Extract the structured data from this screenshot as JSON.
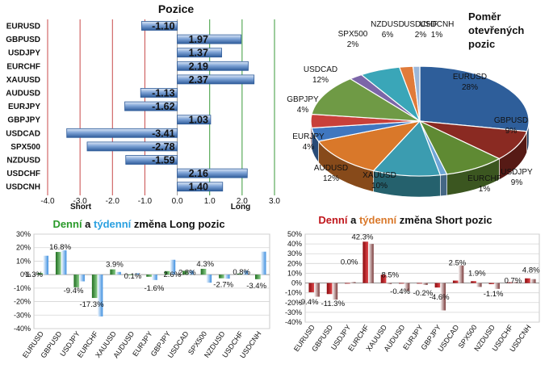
{
  "positions": {
    "title": "Pozice",
    "short_label": "Short",
    "long_label": "Long",
    "xticks": [
      "-4.0",
      "-3.0",
      "-2.0",
      "-1.0",
      "0.0",
      "1.0",
      "2.0",
      "3.0"
    ]
  },
  "pie_title": [
    "Poměr",
    "otevřených",
    "pozic"
  ],
  "long_chart": {
    "title_parts": [
      "Denní",
      " a ",
      "týdenní",
      " změna Long pozic"
    ],
    "yticks": [
      "30%",
      "20%",
      "10%",
      "0%",
      "-10%",
      "-20%",
      "-30%",
      "-40%"
    ]
  },
  "short_chart": {
    "title_parts": [
      "Denní",
      " a ",
      "týdenní",
      " změna Short pozic"
    ],
    "yticks": [
      "50%",
      "40%",
      "30%",
      "20%",
      "10%",
      "0%",
      "-10%",
      "-20%",
      "-30%",
      "-40%"
    ]
  },
  "colors": {
    "long_daily": "#3a9a3a",
    "long_weekly": "#3d8fe0",
    "short_daily": "#c0161c",
    "short_weekly": "#9c5a5a",
    "bar_blue": "#4f7fc0"
  },
  "chart_data": [
    {
      "type": "bar",
      "orientation": "horizontal",
      "title": "Pozice",
      "categories": [
        "EURUSD",
        "GBPUSD",
        "USDJPY",
        "EURCHF",
        "XAUUSD",
        "AUDUSD",
        "EURJPY",
        "GBPJPY",
        "USDCAD",
        "SPX500",
        "NZDUSD",
        "USDCHF",
        "USDCNH"
      ],
      "values": [
        -1.1,
        1.97,
        1.37,
        2.19,
        2.37,
        -1.13,
        -1.62,
        1.03,
        -3.41,
        -2.78,
        -1.59,
        2.16,
        1.4
      ],
      "value_labels": [
        "-1.10",
        "1.97",
        "1.37",
        "2.19",
        "2.37",
        "-1.13",
        "-1.62",
        "1.03",
        "-3.41",
        "-2.78",
        "-1.59",
        "2.16",
        "1.40"
      ],
      "xlim": [
        -4.0,
        3.0
      ]
    },
    {
      "type": "pie",
      "title": "Poměr otevřených pozic",
      "labels": [
        "EURUSD",
        "GBPUSD",
        "USDJPY",
        "EURCHF",
        "XAUUSD",
        "AUDUSD",
        "EURJPY",
        "GBPJPY",
        "USDCAD",
        "SPX500",
        "NZDUSD",
        "USDCHF",
        "USDCNH"
      ],
      "values": [
        28,
        9,
        9,
        1,
        10,
        12,
        4,
        4,
        12,
        2,
        6,
        2,
        1
      ],
      "pct_labels": [
        "28%",
        "9%",
        "9%",
        "1%",
        "10%",
        "12%",
        "4%",
        "4%",
        "12%",
        "2%",
        "6%",
        "2%",
        "1%"
      ],
      "slice_colors": [
        "#2e5e9a",
        "#8a2a22",
        "#5f8a33",
        "#6fa6d6",
        "#3b9cb0",
        "#d9782a",
        "#3f77c0",
        "#c8403a",
        "#6f9a45",
        "#7c66a8",
        "#3aa6b8",
        "#e07b3a",
        "#9bb7d9"
      ]
    },
    {
      "type": "bar",
      "title": "Denní a týdenní změna Long pozic",
      "categories": [
        "EURUSD",
        "GBPUSD",
        "USDJPY",
        "EURCHF",
        "XAUUSD",
        "AUDUSD",
        "EURJPY",
        "GBPJPY",
        "USDCAD",
        "SPX500",
        "NZDUSD",
        "USDCHF",
        "USDCNH"
      ],
      "series": [
        {
          "name": "Denní",
          "values": [
            1.3,
            16.8,
            -9.4,
            -17.3,
            3.9,
            0.1,
            -1.6,
            2.6,
            2.8,
            4.3,
            -2.7,
            0.8,
            -3.4
          ]
        },
        {
          "name": "týdenní",
          "values": [
            14,
            18,
            -5,
            -31,
            2,
            1,
            -4,
            11,
            3,
            -6,
            -3,
            3,
            17
          ]
        }
      ],
      "value_labels": [
        "1.3%",
        "16.8%",
        "-9.4%",
        "-17.3%",
        "3.9%",
        "0.1%",
        "-1.6%",
        "2.6%",
        "2.8%",
        "4.3%",
        "-2.7%",
        "0.8%",
        "-3.4%"
      ],
      "ylim": [
        -40,
        30
      ]
    },
    {
      "type": "bar",
      "title": "Denní a týdenní změna Short pozic",
      "categories": [
        "EURUSD",
        "GBPUSD",
        "USDJPY",
        "EURCHF",
        "XAUUSD",
        "AUDUSD",
        "EURJPY",
        "GBPJPY",
        "USDCAD",
        "SPX500",
        "NZDUSD",
        "USDCHF",
        "USDCNH"
      ],
      "series": [
        {
          "name": "Denní",
          "values": [
            -9.4,
            -11.3,
            0.0,
            42.3,
            8.5,
            -0.4,
            -0.2,
            -4.6,
            2.5,
            1.9,
            -1.1,
            0.7,
            4.8
          ]
        },
        {
          "name": "týdenní",
          "values": [
            -14,
            -17,
            1,
            40,
            -1,
            -8,
            -2,
            -28,
            18,
            -4,
            -6,
            1,
            4
          ]
        }
      ],
      "value_labels": [
        "-9.4%",
        "-11.3%",
        "0.0%",
        "42.3%",
        "8.5%",
        "-0.4%",
        "-0.2%",
        "-4.6%",
        "2.5%",
        "1.9%",
        "-1.1%",
        "0.7%",
        "4.8%"
      ],
      "ylim": [
        -40,
        50
      ]
    }
  ]
}
